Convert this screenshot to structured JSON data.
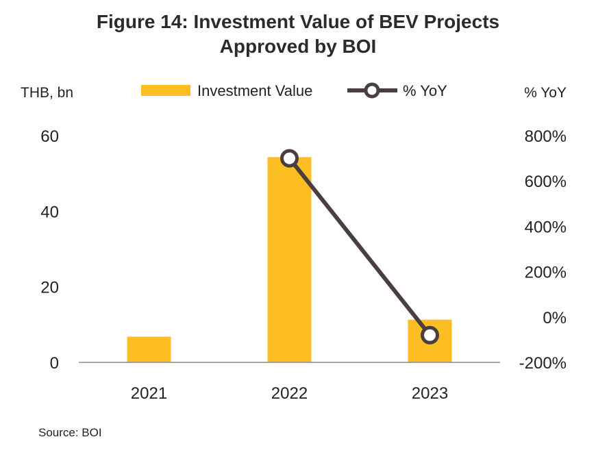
{
  "title_line1": "Figure 14: Investment Value of BEV Projects",
  "title_line2": "Approved by BOI",
  "source": "Source: BOI",
  "chart_data": {
    "type": "bar",
    "categories": [
      "2021",
      "2022",
      "2023"
    ],
    "series": [
      {
        "name": "Investment Value",
        "type": "bar",
        "axis": "left",
        "values": [
          6.8,
          54.3,
          11.3
        ],
        "color": "#FDBE23"
      },
      {
        "name": "% YoY",
        "type": "line",
        "axis": "right",
        "values": [
          null,
          700,
          -80
        ],
        "color": "#4a3f3e"
      }
    ],
    "ylabel_left": "THB, bn",
    "ylabel_right": "% YoY",
    "ylim_left": [
      0,
      60
    ],
    "ylim_right": [
      -200,
      800
    ],
    "yticks_left": [
      "0",
      "20",
      "40",
      "60"
    ],
    "yticks_right": [
      "-200%",
      "0%",
      "200%",
      "400%",
      "600%",
      "800%"
    ],
    "legend_position": "top",
    "grid": false
  }
}
